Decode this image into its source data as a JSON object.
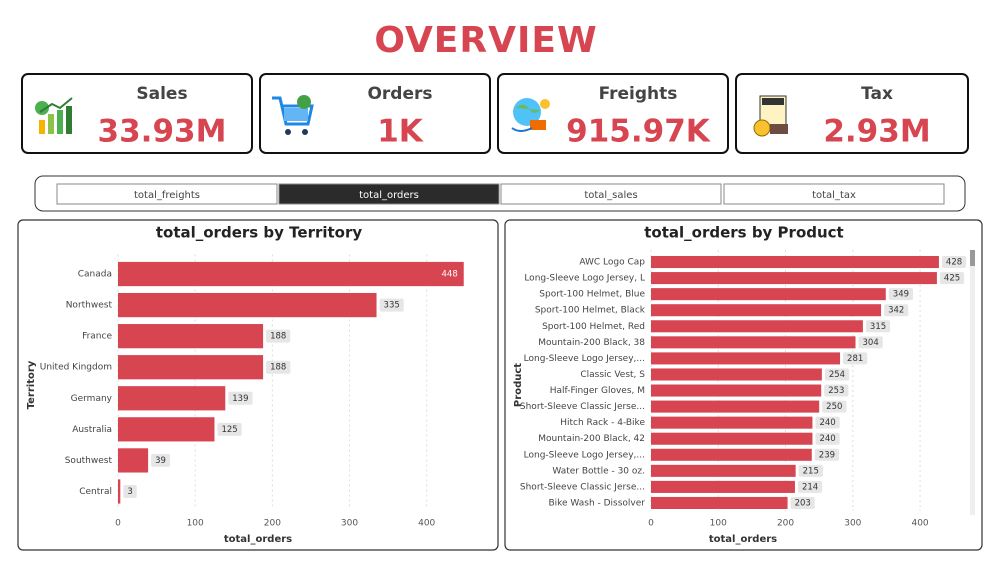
{
  "header": {
    "title": "OVERVIEW"
  },
  "cards": [
    {
      "label": "Sales",
      "value": "33.93M"
    },
    {
      "label": "Orders",
      "value": "1K"
    },
    {
      "label": "Freights",
      "value": "915.97K"
    },
    {
      "label": "Tax",
      "value": "2.93M"
    }
  ],
  "slicer": {
    "buttons": [
      "total_freights",
      "total_orders",
      "total_sales",
      "total_tax"
    ],
    "selected": 1
  },
  "chart_data": [
    {
      "type": "hbar",
      "title": "total_orders by Territory",
      "x_label": "total_orders",
      "y_label": "Territory",
      "categories": [
        "Canada",
        "Northwest",
        "France",
        "United Kingdom",
        "Germany",
        "Australia",
        "Southwest",
        "Central"
      ],
      "values": [
        448,
        335,
        188,
        188,
        139,
        125,
        39,
        3
      ],
      "color": "#d64550",
      "xlim": [
        0,
        460
      ],
      "xticks": [
        0,
        100,
        200,
        300,
        400
      ],
      "grid": true
    },
    {
      "type": "hbar",
      "title": "total_orders by Product",
      "x_label": "total_orders",
      "y_label": "Product",
      "categories": [
        "AWC Logo Cap",
        "Long-Sleeve Logo Jersey, L",
        "Sport-100 Helmet, Blue",
        "Sport-100 Helmet, Black",
        "Sport-100 Helmet, Red",
        "Mountain-200 Black, 38",
        "Long-Sleeve Logo Jersey,...",
        "Classic Vest, S",
        "Half-Finger Gloves, M",
        "Short-Sleeve Classic Jerse...",
        "Hitch Rack - 4-Bike",
        "Mountain-200 Black, 42",
        "Long-Sleeve Logo Jersey,...",
        "Water Bottle - 30 oz.",
        "Short-Sleeve Classic Jerse...",
        "Bike Wash - Dissolver"
      ],
      "values": [
        428,
        425,
        349,
        342,
        315,
        304,
        281,
        254,
        253,
        250,
        240,
        240,
        239,
        215,
        214,
        203
      ],
      "color": "#d64550",
      "xlim": [
        0,
        440
      ],
      "xticks": [
        0,
        100,
        200,
        300,
        400
      ],
      "grid": true
    }
  ]
}
